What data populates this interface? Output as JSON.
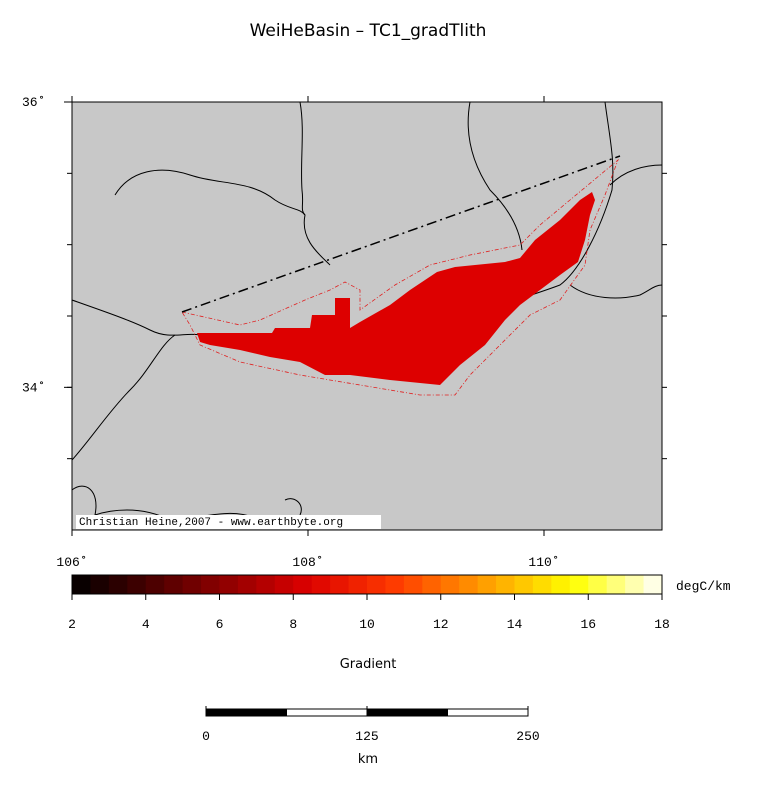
{
  "title": "WeiHeBasin – TC1_gradTlith",
  "map": {
    "xlim": [
      106,
      111
    ],
    "ylim": [
      33,
      36
    ],
    "xticks": [
      {
        "value": 106,
        "label": "106˚"
      },
      {
        "value": 108,
        "label": "108˚"
      },
      {
        "value": 110,
        "label": "110˚"
      }
    ],
    "yticks": [
      {
        "value": 34,
        "label": "34˚"
      },
      {
        "value": 36,
        "label": "36˚"
      }
    ],
    "credit": "Christian Heine,2007 - www.earthbyte.org"
  },
  "colorbar": {
    "range": [
      2,
      18
    ],
    "ticks": [
      2,
      4,
      6,
      8,
      10,
      12,
      14,
      16,
      18
    ],
    "unit": "degC/km",
    "label": "Gradient"
  },
  "scale_bar": {
    "ticks": [
      0,
      125,
      250
    ],
    "unit": "km"
  }
}
